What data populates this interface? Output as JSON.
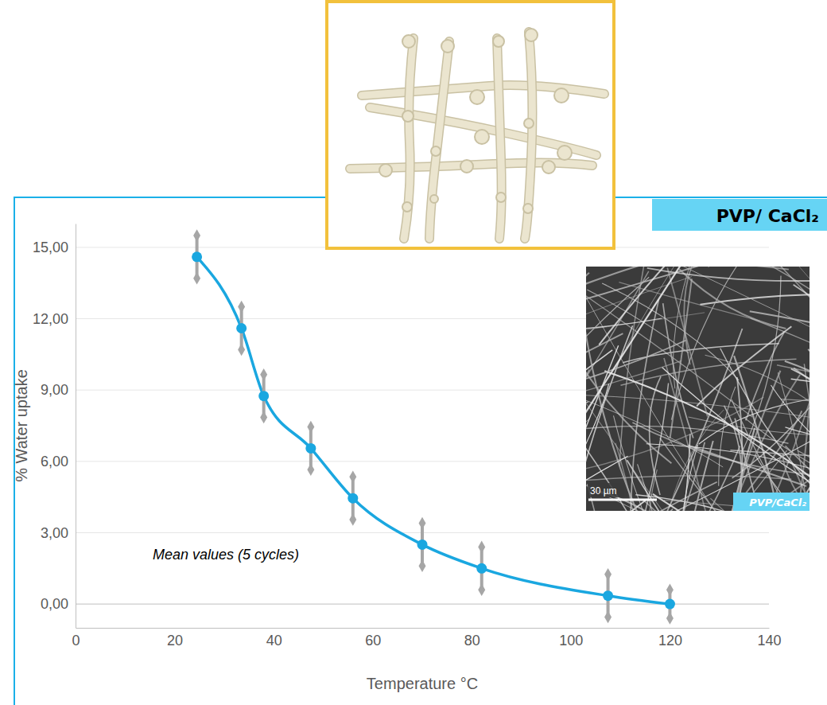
{
  "chart_data": {
    "type": "line",
    "title": "PVP/ CaCl₂",
    "x_label": "Temperature °C",
    "y_label": "% Water uptake",
    "annotations": [
      "Mean values (5 cycles)",
      "30 µm",
      "PVP/CaCl₂"
    ],
    "x": [
      24.5,
      33.5,
      38,
      47.5,
      56,
      70,
      82,
      107.5,
      120
    ],
    "values": [
      14.6,
      11.6,
      8.75,
      6.55,
      4.45,
      2.5,
      1.5,
      0.35,
      0
    ],
    "errors": [
      0.9,
      0.9,
      0.9,
      0.9,
      0.9,
      0.9,
      0.9,
      0.9,
      0.6
    ],
    "color": "#1aa7e0",
    "marker": "circle",
    "line_style": "smooth",
    "xlim": [
      0,
      140
    ],
    "xticks": [
      0,
      20,
      40,
      60,
      80,
      100,
      120,
      140
    ],
    "ylim": [
      -1,
      16
    ],
    "yticks": [
      {
        "value": 0,
        "label": "0,00"
      },
      {
        "value": 3,
        "label": "3,00"
      },
      {
        "value": 6,
        "label": "6,00"
      },
      {
        "value": 9,
        "label": "9,00"
      },
      {
        "value": 12,
        "label": "12,00"
      },
      {
        "value": 15,
        "label": "15,00"
      }
    ],
    "grid": true
  }
}
